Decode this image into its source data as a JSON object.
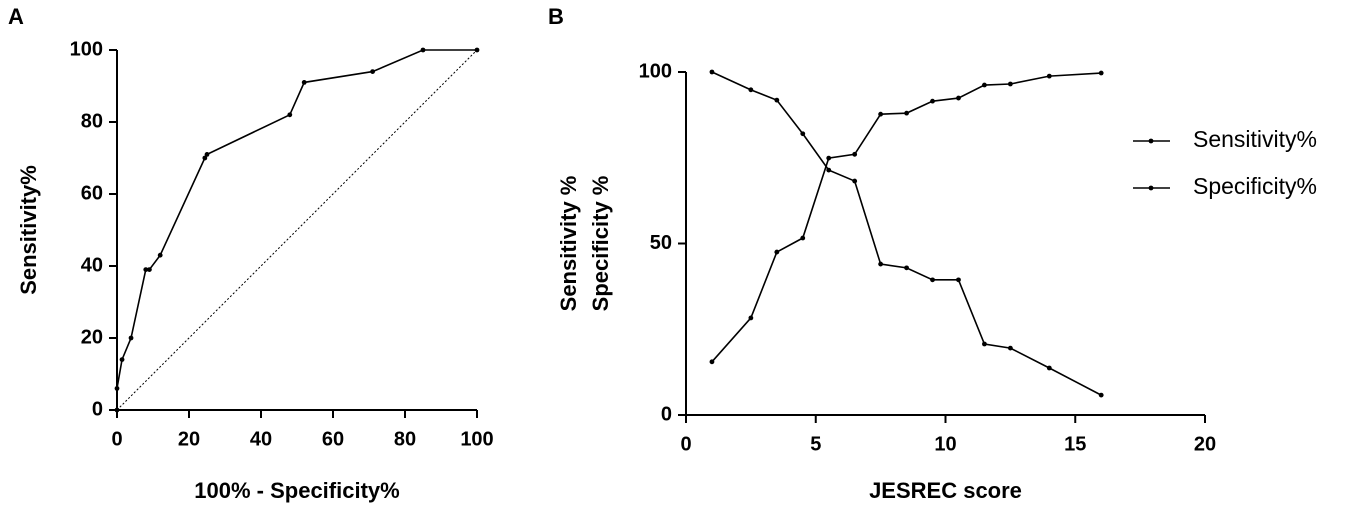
{
  "chart_data": [
    {
      "type": "line",
      "panel": "A",
      "xlabel": "100% - Specificity%",
      "ylabel": "Sensitivity%",
      "x": [
        0,
        0,
        1.4,
        3.9,
        8,
        9,
        12,
        24.4,
        25,
        48,
        52,
        71,
        85,
        100
      ],
      "values": [
        0,
        6,
        14,
        20,
        39,
        39,
        43,
        70,
        71,
        82,
        91,
        94,
        100,
        100
      ],
      "color": "#000000",
      "diagonal": {
        "x": [
          0,
          100
        ],
        "values": [
          0,
          100
        ]
      },
      "xlim": [
        0,
        100
      ],
      "xticks": [
        0,
        20,
        40,
        60,
        80,
        100
      ],
      "ylim": [
        0,
        100
      ],
      "yticks": [
        0,
        20,
        40,
        60,
        80,
        100
      ]
    },
    {
      "type": "line",
      "panel": "B",
      "xlabel": "JESREC score",
      "ylabel": [
        "Sensitivity %",
        "Specificity %"
      ],
      "x": [
        1,
        2.5,
        3.5,
        4.5,
        5.5,
        6.5,
        7.5,
        8.5,
        9.5,
        10.5,
        11.5,
        12.5,
        14,
        16
      ],
      "series": [
        {
          "name": "Sensitivity%",
          "color": "#000000",
          "values": [
            100,
            94.8,
            91.8,
            82,
            71.4,
            68.2,
            44,
            42.9,
            39.4,
            39.4,
            20.7,
            19.5,
            13.7,
            5.8
          ]
        },
        {
          "name": "Specificity%",
          "color": "#000000",
          "values": [
            15.5,
            28.3,
            47.5,
            51.6,
            74.9,
            76,
            87.7,
            88,
            91.5,
            92.4,
            96.2,
            96.5,
            98.8,
            99.7
          ]
        }
      ],
      "legend": "right",
      "xlim": [
        0,
        20
      ],
      "xticks": [
        0,
        5,
        10,
        15,
        20
      ],
      "ylim": [
        0,
        100
      ],
      "yticks": [
        0,
        50,
        100
      ]
    }
  ]
}
